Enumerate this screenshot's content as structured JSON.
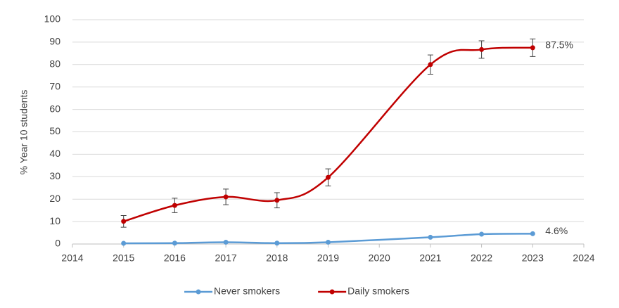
{
  "chart_data": {
    "type": "line",
    "y_label": "% Year 10 students",
    "x": [
      2015,
      2016,
      2017,
      2018,
      2019,
      2021,
      2022,
      2023
    ],
    "series": [
      {
        "name": "Never smokers",
        "color": "#5b9bd5",
        "values": [
          0.3,
          0.4,
          0.8,
          0.4,
          0.8,
          3.0,
          4.4,
          4.6
        ],
        "value_labels": [
          null,
          null,
          null,
          null,
          null,
          null,
          null,
          "4.6%"
        ]
      },
      {
        "name": "Daily smokers",
        "color": "#c00000",
        "values": [
          10.1,
          17.2,
          21.0,
          19.5,
          29.7,
          80.0,
          86.7,
          87.5
        ],
        "errors": [
          2.6,
          3.2,
          3.5,
          3.4,
          3.8,
          4.3,
          3.9,
          3.9
        ],
        "value_labels": [
          null,
          null,
          null,
          null,
          null,
          null,
          null,
          "87.5%"
        ]
      }
    ],
    "xlim": [
      2014,
      2024
    ],
    "xticks": [
      2014,
      2015,
      2016,
      2017,
      2018,
      2019,
      2020,
      2021,
      2022,
      2023,
      2024
    ],
    "ylim": [
      0,
      100
    ],
    "yticks": [
      0,
      10,
      20,
      30,
      40,
      50,
      60,
      70,
      80,
      90,
      100
    ],
    "grid": true,
    "legend": "bottom"
  }
}
